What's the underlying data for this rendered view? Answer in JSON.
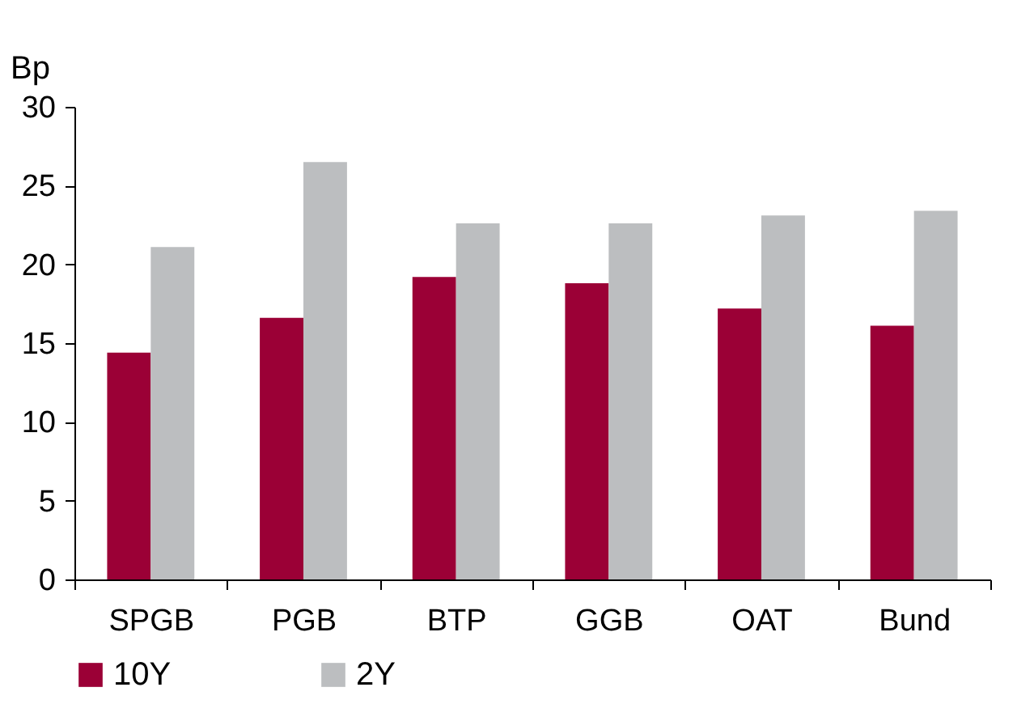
{
  "chart_data": {
    "type": "bar",
    "ylabel": "Bp",
    "categories": [
      "SPGB",
      "PGB",
      "BTP",
      "GGB",
      "OAT",
      "Bund"
    ],
    "series": [
      {
        "name": "10Y",
        "color": "#9b0036",
        "values": [
          14.4,
          16.6,
          19.2,
          18.8,
          17.2,
          16.1
        ]
      },
      {
        "name": "2Y",
        "color": "#bcbec0",
        "values": [
          21.1,
          26.5,
          22.6,
          22.6,
          23.1,
          23.4
        ]
      }
    ],
    "ylim": [
      0,
      30
    ],
    "yticks": [
      0,
      5,
      10,
      15,
      20,
      25,
      30
    ],
    "grid": false,
    "legend": "bottom"
  }
}
